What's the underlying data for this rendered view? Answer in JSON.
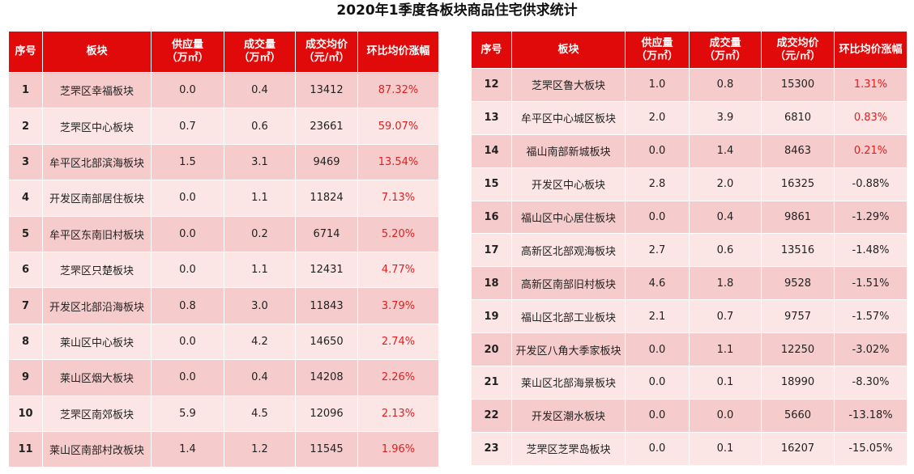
{
  "title": "2020年1季度各板块商品住宅供求统计",
  "tables": [
    {
      "header": [
        "序号",
        "板块",
        "供应量\n（万㎡）",
        "成交量\n（万㎡）",
        "成交均价\n（元/㎡）",
        "环比均价涨幅"
      ],
      "rows": [
        [
          "1",
          "芝罘区幸福板块",
          "0.0",
          "0.4",
          "13412",
          "87.32%"
        ],
        [
          "2",
          "芝罘区中心板块",
          "0.7",
          "0.6",
          "23661",
          "59.07%"
        ],
        [
          "3",
          "牟平区北部滨海板块",
          "1.5",
          "3.1",
          "9469",
          "13.54%"
        ],
        [
          "4",
          "开发区南部居住板块",
          "0.0",
          "1.1",
          "11824",
          "7.13%"
        ],
        [
          "5",
          "牟平区东南旧村板块",
          "0.0",
          "0.2",
          "6714",
          "5.20%"
        ],
        [
          "6",
          "芝罘区只楚板块",
          "0.0",
          "1.1",
          "12431",
          "4.77%"
        ],
        [
          "7",
          "开发区北部沿海板块",
          "0.8",
          "3.0",
          "11843",
          "3.79%"
        ],
        [
          "8",
          "莱山区中心板块",
          "0.0",
          "4.2",
          "14650",
          "2.74%"
        ],
        [
          "9",
          "莱山区烟大板块",
          "0.0",
          "0.4",
          "14208",
          "2.26%"
        ],
        [
          "10",
          "芝罘区南郊板块",
          "5.9",
          "4.5",
          "12096",
          "2.13%"
        ],
        [
          "11",
          "莱山区南部村改板块",
          "1.4",
          "1.2",
          "11545",
          "1.96%"
        ]
      ]
    },
    {
      "header": [
        "序号",
        "板块",
        "供应量\n（万㎡）",
        "成交量\n（万㎡）",
        "成交均价\n（元/㎡）",
        "环比均价涨幅"
      ],
      "rows": [
        [
          "12",
          "芝罘区鲁大板块",
          "1.0",
          "0.8",
          "15300",
          "1.31%"
        ],
        [
          "13",
          "牟平区中心城区板块",
          "2.0",
          "3.9",
          "6810",
          "0.83%"
        ],
        [
          "14",
          "福山南部新城板块",
          "0.0",
          "1.4",
          "8463",
          "0.21%"
        ],
        [
          "15",
          "开发区中心板块",
          "2.8",
          "2.0",
          "16325",
          "-0.88%"
        ],
        [
          "16",
          "福山区中心居住板块",
          "0.0",
          "0.4",
          "9861",
          "-1.29%"
        ],
        [
          "17",
          "高新区北部观海板块",
          "2.7",
          "0.6",
          "13516",
          "-1.48%"
        ],
        [
          "18",
          "高新区南部旧村板块",
          "4.6",
          "1.8",
          "9528",
          "-1.51%"
        ],
        [
          "19",
          "福山区北部工业板块",
          "2.1",
          "0.7",
          "9757",
          "-1.57%"
        ],
        [
          "20",
          "开发区八角大季家板块",
          "0.0",
          "1.1",
          "12250",
          "-3.02%"
        ],
        [
          "21",
          "莱山区北部海景板块",
          "0.0",
          "0.1",
          "18990",
          "-8.30%"
        ],
        [
          "22",
          "开发区潮水板块",
          "0.0",
          "0.0",
          "5660",
          "-13.18%"
        ],
        [
          "23",
          "芝罘区芝罘岛板块",
          "0.0",
          "0.1",
          "16207",
          "-15.05%"
        ]
      ]
    }
  ]
}
